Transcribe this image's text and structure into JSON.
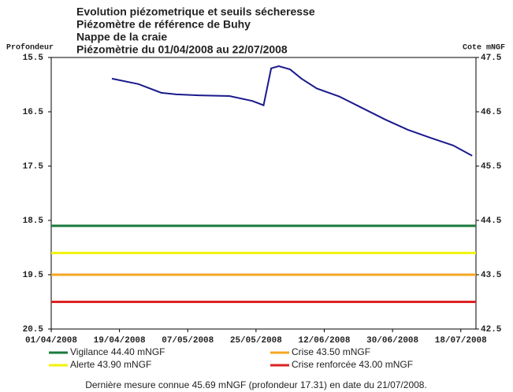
{
  "chart_data": {
    "type": "line",
    "title": [
      "Evolution piézometrique et seuils sécheresse",
      "Piézomètre de référence de Buhy",
      "Nappe de la craie",
      "Piézomètrie du 01/04/2008 au 22/07/2008"
    ],
    "ylabel": "Profondeur",
    "y2label": "Cote mNGF",
    "xlim": [
      "2008-04-01",
      "2008-07-22"
    ],
    "xticks": [
      {
        "value": "2008-04-01",
        "label": "01/04/2008"
      },
      {
        "value": "2008-04-19",
        "label": "19/04/2008"
      },
      {
        "value": "2008-05-07",
        "label": "07/05/2008"
      },
      {
        "value": "2008-05-25",
        "label": "25/05/2008"
      },
      {
        "value": "2008-06-12",
        "label": "12/06/2008"
      },
      {
        "value": "2008-06-30",
        "label": "30/06/2008"
      },
      {
        "value": "2008-07-18",
        "label": "18/07/2008"
      }
    ],
    "ylim": [
      20.5,
      15.5
    ],
    "yticks": [
      15.5,
      16.5,
      17.5,
      18.5,
      19.5,
      20.5
    ],
    "y2lim": [
      42.5,
      47.5
    ],
    "y2ticks": [
      42.5,
      43.5,
      44.5,
      45.5,
      46.5,
      47.5
    ],
    "x": [
      "2008-04-17",
      "2008-04-24",
      "2008-04-30",
      "2008-05-04",
      "2008-05-11",
      "2008-05-18",
      "2008-05-24",
      "2008-05-27",
      "2008-05-29",
      "2008-05-31",
      "2008-06-03",
      "2008-06-06",
      "2008-06-10",
      "2008-06-16",
      "2008-06-22",
      "2008-06-28",
      "2008-07-04",
      "2008-07-10",
      "2008-07-16",
      "2008-07-21"
    ],
    "series": [
      {
        "name": null,
        "color": "#1a1a8c",
        "axis": "y2",
        "values": [
          47.11,
          47.01,
          46.85,
          46.82,
          46.8,
          46.79,
          46.7,
          46.62,
          47.3,
          47.34,
          47.28,
          47.11,
          46.93,
          46.78,
          46.57,
          46.36,
          46.17,
          46.02,
          45.88,
          45.69
        ]
      }
    ],
    "thresholds": [
      {
        "name": "Vigilance 44.40 mNGF",
        "color": "#1a7a3e",
        "value": 44.4
      },
      {
        "name": "Crise 43.50 mNGF",
        "color": "#f5a623",
        "value": 43.5
      },
      {
        "name": "Alerte 43.90 mNGF",
        "color": "#f2f20a",
        "value": 43.9
      },
      {
        "name": "Crise renforcée 43.00 mNGF",
        "color": "#dd2222",
        "value": 43.0
      }
    ],
    "note": "Dernière mesure connue 45.69 mNGF (profondeur  17.31) en date du 21/07/2008."
  }
}
